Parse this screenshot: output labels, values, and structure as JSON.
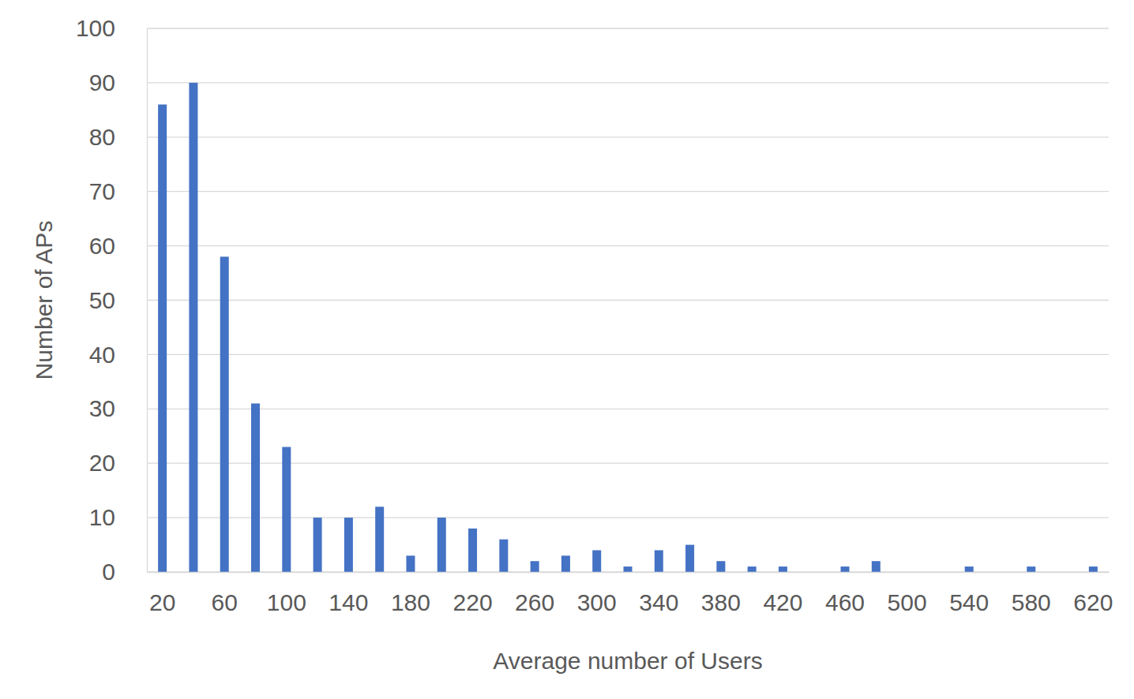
{
  "chart_data": {
    "type": "bar",
    "x_label": "Average number of Users",
    "y_label": "Number of APs",
    "categories": [
      "20",
      null,
      "60",
      null,
      "100",
      null,
      "140",
      null,
      "180",
      null,
      "220",
      null,
      "260",
      null,
      "300",
      null,
      "340",
      null,
      "380",
      null,
      "420",
      null,
      "460",
      null,
      "500",
      null,
      "540",
      null,
      "580",
      null,
      "620"
    ],
    "values": [
      86,
      90,
      58,
      31,
      23,
      10,
      10,
      12,
      3,
      10,
      8,
      6,
      2,
      3,
      4,
      1,
      4,
      5,
      2,
      1,
      1,
      0,
      1,
      2,
      0,
      0,
      1,
      0,
      1,
      0,
      1
    ],
    "color": "#4472c4",
    "ylim": [
      0,
      100
    ],
    "yticks": [
      0,
      10,
      20,
      30,
      40,
      50,
      60,
      70,
      80,
      90,
      100
    ],
    "grid": true
  }
}
